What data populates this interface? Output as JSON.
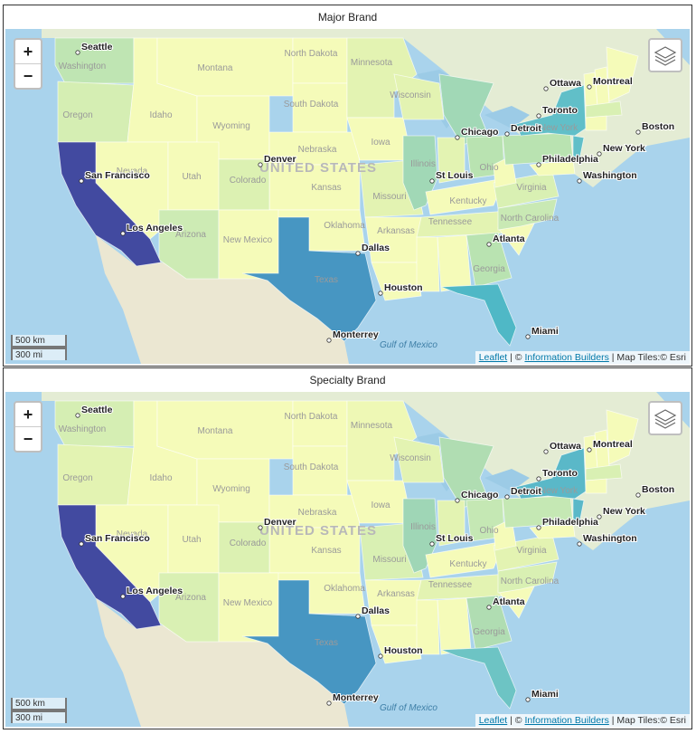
{
  "panels": [
    {
      "title": "Major Brand",
      "fills": {
        "CA": "#424aa0",
        "TX": "#4796c2",
        "FL": "#4fb8c6",
        "NY": "#61bfc8",
        "NJ": "#61bfc8",
        "MI": "#a1d8b6",
        "IL": "#a1d8b6",
        "GA": "#b9e3b1",
        "OH": "#b9e3b1",
        "PA": "#b9e3b1",
        "WA": "#bfe5b3",
        "OR": "#d5eeb3",
        "AZ": "#cdebb4",
        "NC": "#c9e9b4",
        "VA": "#d9f0b3",
        "MA": "#d9f0b3",
        "CO": "#dcf1b2",
        "WI": "#e3f3b2",
        "MN": "#e3f3b2",
        "IN": "#e3f3b2",
        "TN": "#e3f3b2",
        "MO": "#e3f3b2"
      }
    },
    {
      "title": "Specialty Brand",
      "fills": {
        "CA": "#424aa0",
        "TX": "#4796c2",
        "FL": "#6dc4c4",
        "NY": "#5ab8c8",
        "NJ": "#5ab8c8",
        "MI": "#b0ddb2",
        "IL": "#9fd6b6",
        "GA": "#b0ddb2",
        "OH": "#c5e8b4",
        "PA": "#c5e8b4",
        "WA": "#d5eeb3",
        "OR": "#e3f3b2",
        "AZ": "#d9f0b3",
        "NC": "#d9f0b3",
        "VA": "#e3f3b2",
        "MA": "#d9f0b3",
        "CO": "#dcf1b2",
        "WI": "#e3f3b2",
        "MN": "#eef8b5",
        "IN": "#e3f3b2",
        "TN": "#e3f3b2",
        "MO": "#d9f0b3"
      }
    }
  ],
  "default_fill": "#f5fbb9",
  "controls": {
    "zoom_in": "+",
    "zoom_out": "−"
  },
  "scale": {
    "km": "500 km",
    "mi": "300 mi"
  },
  "attribution": {
    "leaflet": "Leaflet",
    "sep1": " | © ",
    "ib": "Information Builders",
    "tiles": " | Map Tiles:© Esri"
  },
  "labels": {
    "cities": [
      "Seattle",
      "San Francisco",
      "Los Angeles",
      "Denver",
      "Dallas",
      "Houston",
      "Monterrey",
      "Chicago",
      "St Louis",
      "Detroit",
      "Atlanta",
      "Miami",
      "Philadelphia",
      "New York",
      "Washington",
      "Boston",
      "Toronto",
      "Ottawa",
      "Montreal"
    ],
    "states": [
      "Washington",
      "Oregon",
      "Idaho",
      "Montana",
      "Wyoming",
      "North Dakota",
      "South Dakota",
      "Nebraska",
      "Kansas",
      "Oklahoma",
      "Nevada",
      "Utah",
      "Colorado",
      "Arizona",
      "New Mexico",
      "Texas",
      "Minnesota",
      "Iowa",
      "Missouri",
      "Arkansas",
      "Wisconsin",
      "Illinois",
      "Kentucky",
      "Tennessee",
      "Ohio",
      "Virginia",
      "North Carolina",
      "Georgia",
      "New York"
    ],
    "country": "UNITED STATES",
    "water": "Gulf of Mexico"
  }
}
